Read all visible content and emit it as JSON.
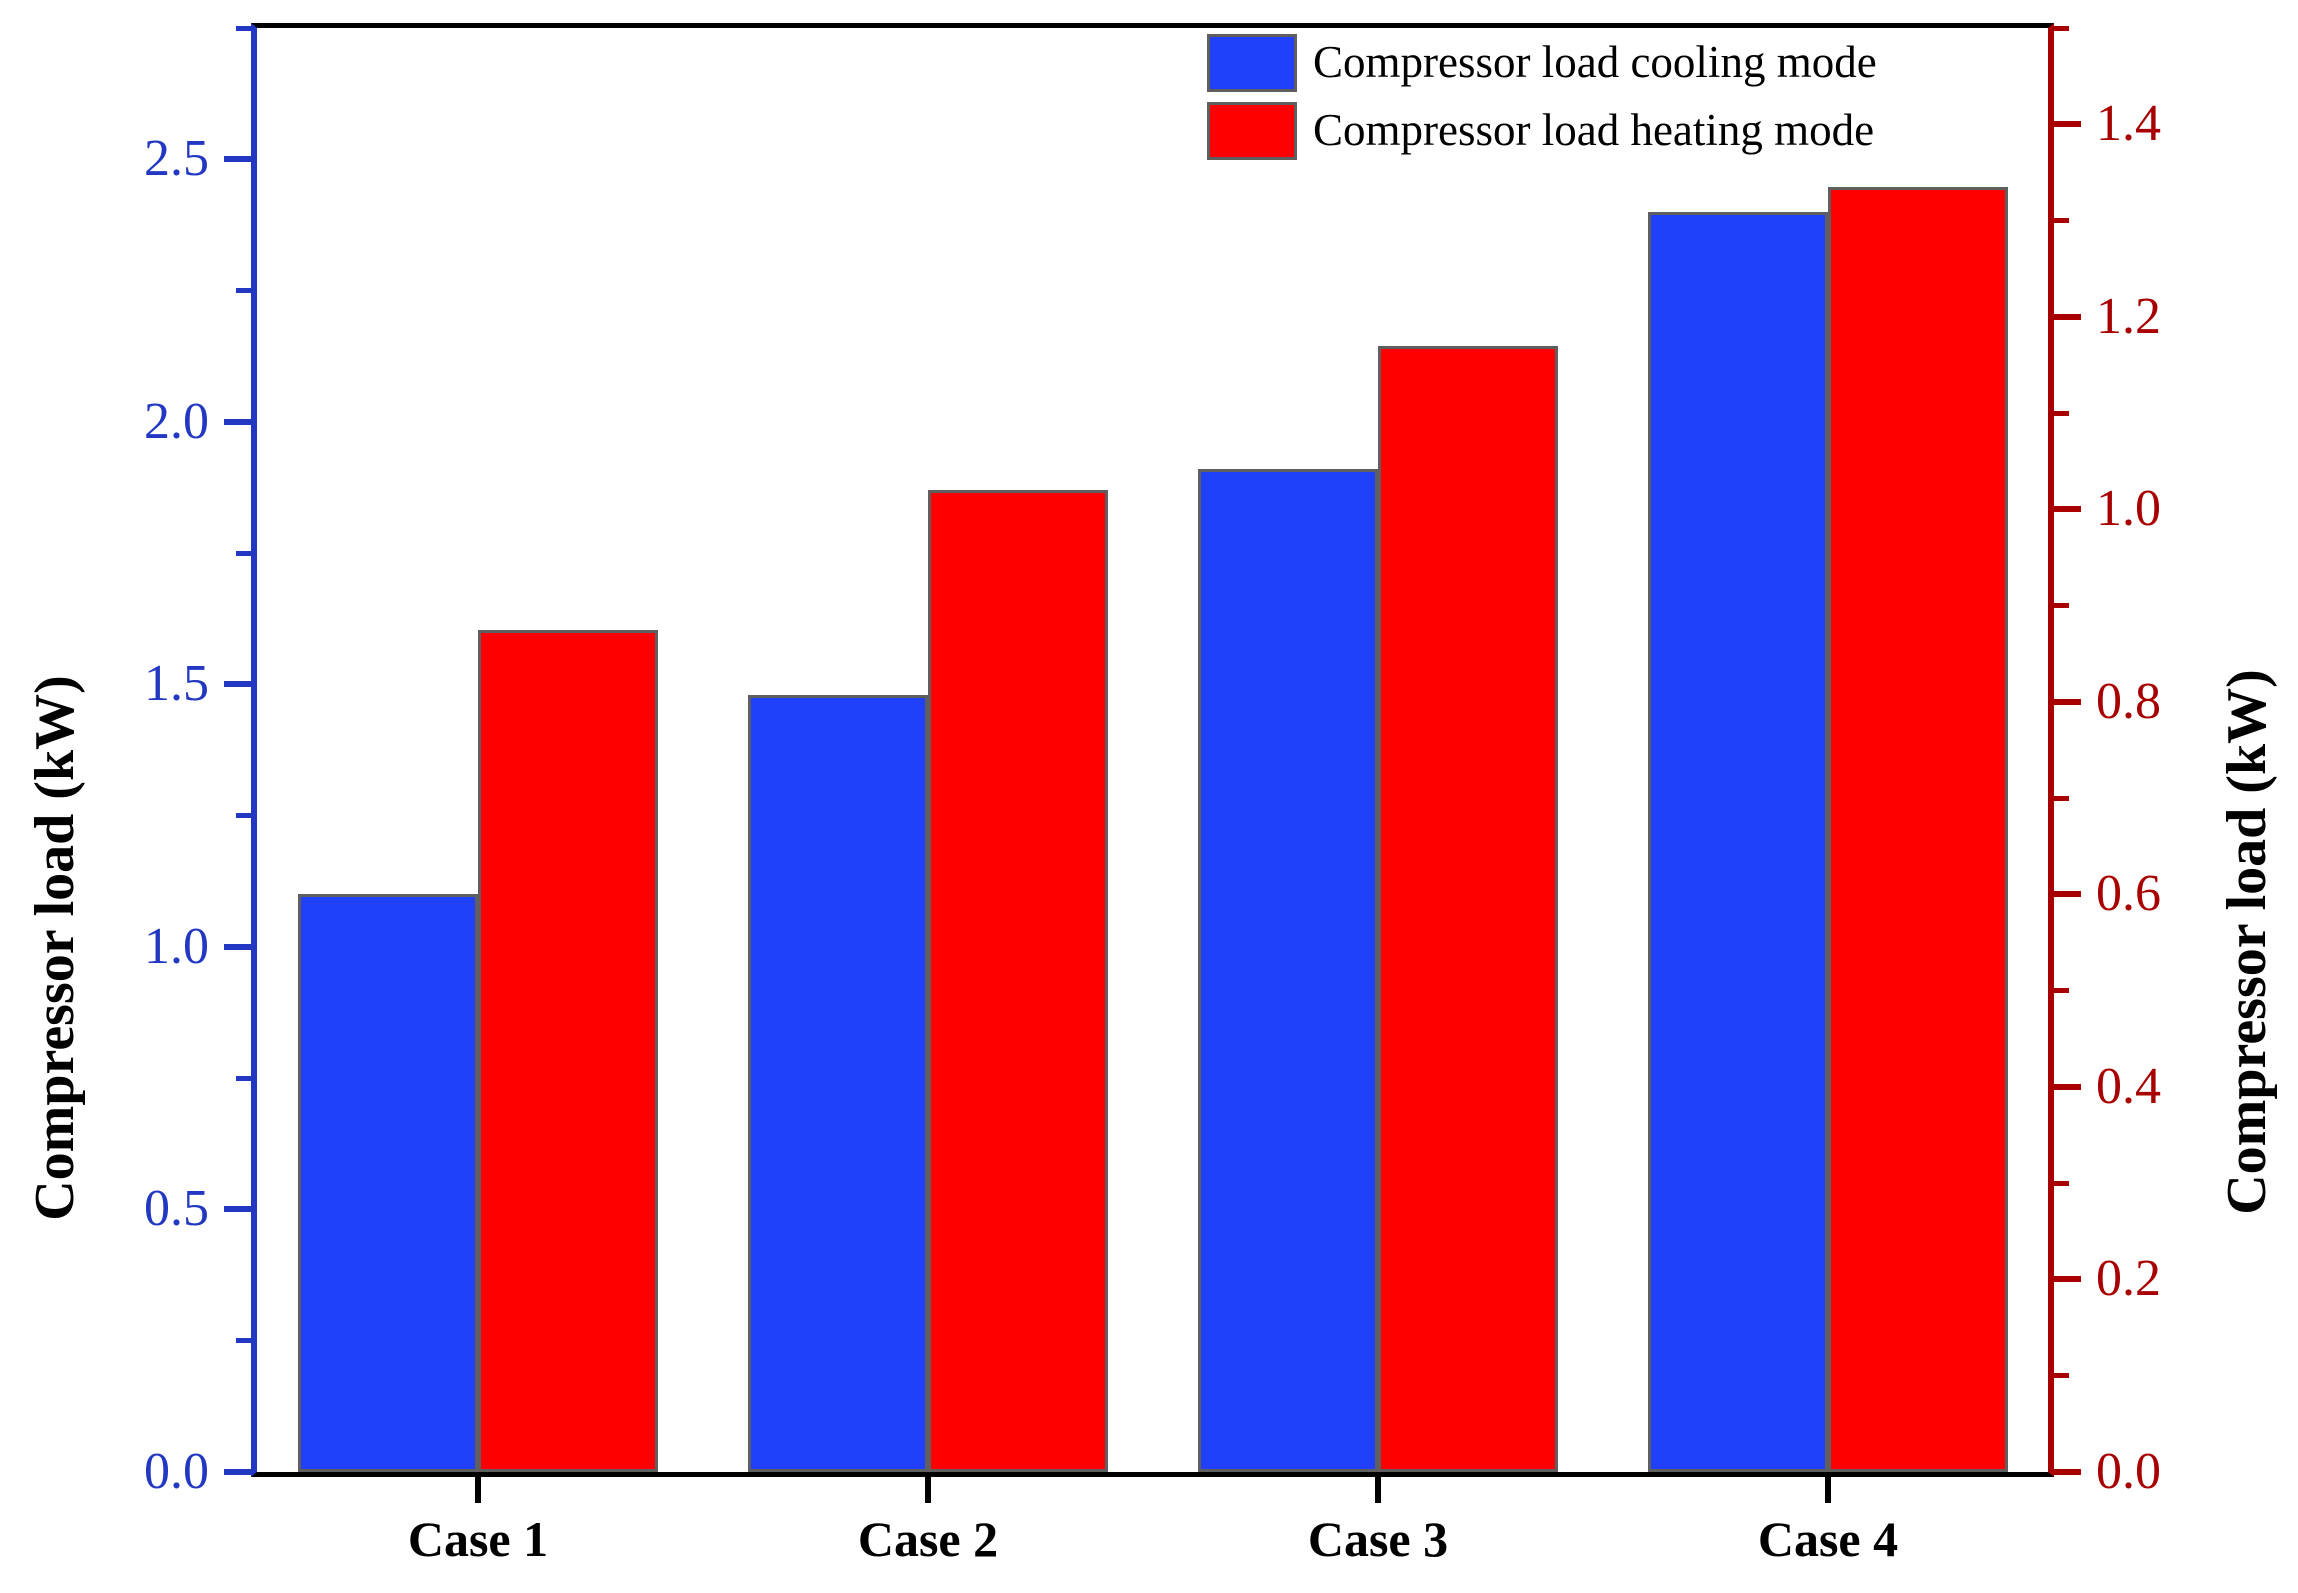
{
  "figure": {
    "background": "#ffffff",
    "frame_color": "#000000"
  },
  "chart_data": {
    "type": "bar",
    "categories": [
      "Case 1",
      "Case 2",
      "Case 3",
      "Case 4"
    ],
    "series": [
      {
        "name": "Compressor load cooling mode",
        "axis": "left",
        "color": "#2040fa",
        "values": [
          1.1,
          1.48,
          1.91,
          2.4
        ]
      },
      {
        "name": "Compressor load heating mode",
        "axis": "right",
        "color": "#ff0000",
        "values": [
          0.875,
          1.02,
          1.17,
          1.335
        ]
      }
    ],
    "left_axis": {
      "label": "Compressor load (kW)",
      "color": "#2338c2",
      "min": 0.0,
      "max": 2.75,
      "major_step": 0.5,
      "minor_step": 0.25,
      "tick_labels": [
        "0.0",
        "0.5",
        "1.0",
        "1.5",
        "2.0",
        "2.5"
      ]
    },
    "right_axis": {
      "label": "Compressor load (kW)",
      "color": "#a80000",
      "min": 0.0,
      "max": 1.5,
      "major_step": 0.2,
      "minor_step": 0.1,
      "tick_labels": [
        "0.0",
        "0.2",
        "0.4",
        "0.6",
        "0.8",
        "1.0",
        "1.2",
        "1.4"
      ]
    },
    "bar_edge_color": "#5f5f5f",
    "grid": false,
    "legend_position": "top-right"
  }
}
